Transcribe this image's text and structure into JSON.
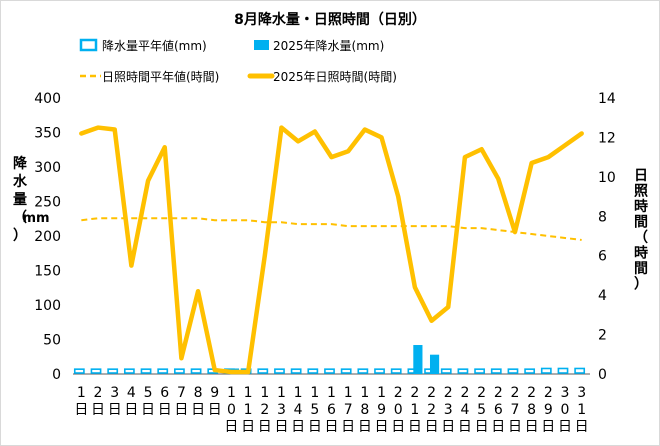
{
  "chart_data": {
    "type": "bar+line",
    "title": "8月降水量・日照時間（日別）",
    "categories": [
      "1日",
      "2日",
      "3日",
      "4日",
      "5日",
      "6日",
      "7日",
      "8日",
      "9日",
      "10日",
      "11日",
      "12日",
      "13日",
      "14日",
      "15日",
      "16日",
      "17日",
      "18日",
      "19日",
      "20日",
      "21日",
      "22日",
      "23日",
      "24日",
      "25日",
      "26日",
      "27日",
      "28日",
      "29日",
      "30日",
      "31日"
    ],
    "legend": [
      {
        "key": "normal_precip",
        "label": "降水量平年値(mm)"
      },
      {
        "key": "precip_2025",
        "label": "2025年降水量(mm)"
      },
      {
        "key": "normal_sunshine",
        "label": "日照時間平年値(時間)"
      },
      {
        "key": "sunshine_2025",
        "label": "2025年日照時間(時間)"
      }
    ],
    "y_left": {
      "label_lines": [
        "降",
        "水",
        "量",
        "（",
        "mm",
        "）"
      ],
      "min": 0,
      "max": 400,
      "ticks": [
        0,
        50,
        100,
        150,
        200,
        250,
        300,
        350,
        400
      ]
    },
    "y_right": {
      "label_lines": [
        "日",
        "照",
        "時",
        "間",
        "（",
        "時",
        "間",
        "）"
      ],
      "min": 0,
      "max": 14,
      "ticks": [
        0,
        2,
        4,
        6,
        8,
        10,
        12,
        14
      ]
    },
    "series": [
      {
        "name": "降水量平年値(mm)",
        "kind": "bar-outline",
        "axis": "left",
        "color": "#00b0f0",
        "values": [
          7,
          7,
          7,
          7,
          7,
          7,
          7,
          7,
          7,
          7,
          7,
          7,
          7,
          7,
          7,
          7,
          7,
          7,
          7,
          7,
          7,
          7,
          7,
          7,
          7,
          7,
          7,
          7,
          8,
          8,
          8
        ]
      },
      {
        "name": "2025年降水量(mm)",
        "kind": "bar",
        "axis": "left",
        "color": "#00b0f0",
        "values": [
          0,
          0,
          0,
          0,
          0,
          0,
          0,
          0,
          0,
          8,
          0,
          0,
          0,
          0,
          0,
          0,
          0,
          0,
          0,
          0,
          42,
          28,
          0,
          0,
          0,
          0,
          0,
          0,
          0,
          0,
          0
        ]
      },
      {
        "name": "日照時間平年値(時間)",
        "kind": "line-dashed",
        "axis": "right",
        "color": "#ffc000",
        "values": [
          7.8,
          7.9,
          7.9,
          7.9,
          7.9,
          7.9,
          7.9,
          7.9,
          7.8,
          7.8,
          7.8,
          7.7,
          7.7,
          7.6,
          7.6,
          7.6,
          7.5,
          7.5,
          7.5,
          7.5,
          7.5,
          7.5,
          7.5,
          7.4,
          7.4,
          7.3,
          7.2,
          7.1,
          7.0,
          6.9,
          6.8
        ]
      },
      {
        "name": "2025年日照時間(時間)",
        "kind": "line",
        "axis": "right",
        "color": "#ffc000",
        "values": [
          12.2,
          12.5,
          12.4,
          5.5,
          9.8,
          11.5,
          0.8,
          4.2,
          0.2,
          0.1,
          0.1,
          6.0,
          12.5,
          11.8,
          12.3,
          11.0,
          11.3,
          12.4,
          12.0,
          9.0,
          4.4,
          2.7,
          3.4,
          11.0,
          11.4,
          9.9,
          7.2,
          10.7,
          11.0,
          11.6,
          12.2
        ]
      }
    ]
  }
}
